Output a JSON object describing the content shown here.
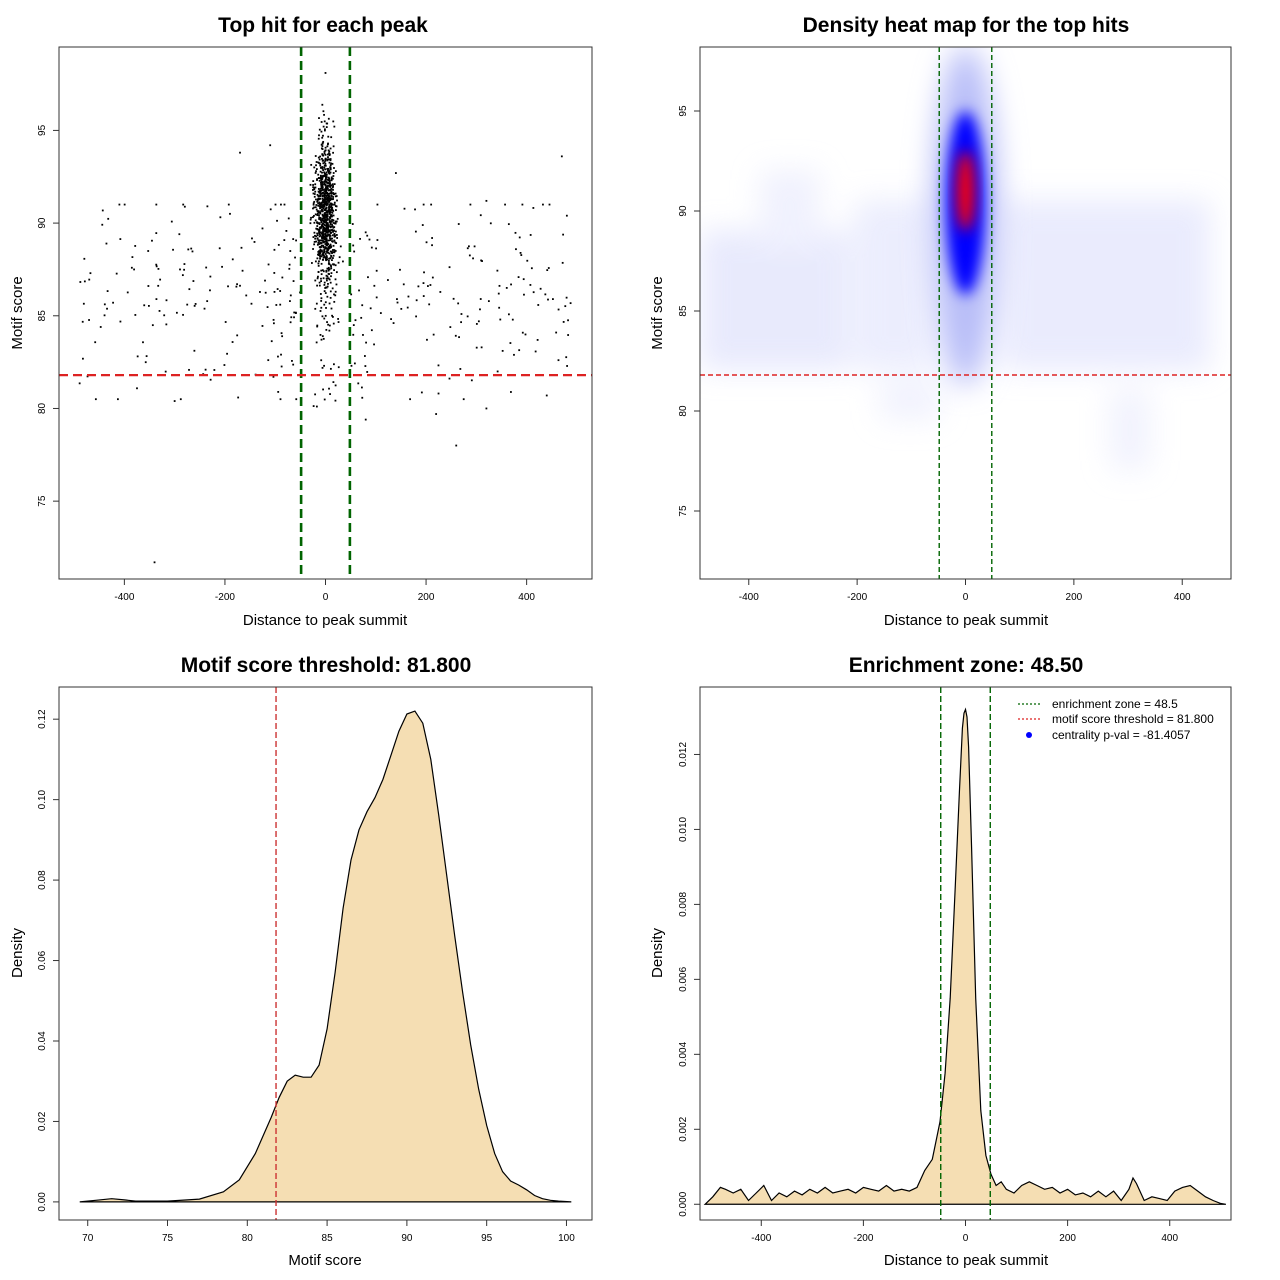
{
  "chart_data": [
    {
      "type": "scatter",
      "title": "Top hit for each peak",
      "xlabel": "Distance to peak summit",
      "ylabel": "Motif score",
      "xlim": [
        -530,
        530
      ],
      "ylim": [
        70.8,
        99.5
      ],
      "xticks": [
        "-400",
        "-200",
        "0",
        "200",
        "400"
      ],
      "yticks": [
        "75",
        "80",
        "85",
        "90",
        "95"
      ],
      "vlines": [
        -48.5,
        48.5
      ],
      "hline": 81.8,
      "vline_color": "#006400",
      "hline_color": "#dd2222",
      "point_color": "#000000",
      "highlight_points": [
        {
          "x": -340,
          "y": 71.7
        },
        {
          "x": 260,
          "y": 78
        },
        {
          "x": -300,
          "y": 80.4
        },
        {
          "x": 220,
          "y": 79.7
        },
        {
          "x": 320,
          "y": 80
        },
        {
          "x": 440,
          "y": 80.7
        },
        {
          "x": 470,
          "y": 93.6
        },
        {
          "x": 480,
          "y": 90.4
        },
        {
          "x": -170,
          "y": 93.8
        },
        {
          "x": 140,
          "y": 92.7
        },
        {
          "x": 320,
          "y": 91.2
        },
        {
          "x": -110,
          "y": 94.2
        },
        {
          "x": 80,
          "y": 79.4
        },
        {
          "x": 0,
          "y": 98.1
        }
      ]
    },
    {
      "type": "heatmap",
      "title": "Density heat map for the top hits",
      "xlabel": "Distance to peak summit",
      "ylabel": "Motif score",
      "xlim": [
        -490,
        490
      ],
      "ylim": [
        71.6,
        98.2
      ],
      "xticks": [
        "-400",
        "-200",
        "0",
        "200",
        "400"
      ],
      "yticks": [
        "75",
        "80",
        "85",
        "90",
        "95"
      ],
      "hotspot": {
        "x": 0,
        "y": 91
      },
      "vlines": [
        -48.5,
        48.5
      ],
      "hline": 81.8,
      "vline_color": "#006400",
      "hline_color": "#dd2222",
      "low_color": "#ffffff",
      "mid_color": "#0000ff",
      "high_color": "#ff0000"
    },
    {
      "type": "area",
      "title": "Motif score threshold: 81.800",
      "xlabel": "Motif score",
      "ylabel": "Density",
      "xlim": [
        68.2,
        101.6
      ],
      "ylim": [
        -0.0045,
        0.128
      ],
      "xticks": [
        "70",
        "75",
        "80",
        "85",
        "90",
        "95",
        "100"
      ],
      "yticks": [
        "0.00",
        "0.02",
        "0.04",
        "0.06",
        "0.08",
        "0.10",
        "0.12"
      ],
      "x": [
        69.5,
        70.5,
        71.5,
        72.3,
        73,
        75,
        77,
        78.5,
        79.5,
        80.5,
        81.5,
        82,
        82.5,
        83,
        83.5,
        84,
        84.5,
        85,
        85.5,
        86,
        86.5,
        87,
        87.5,
        88,
        88.5,
        89,
        89.5,
        90,
        90.5,
        91,
        91.5,
        92,
        92.5,
        93,
        93.5,
        94,
        94.5,
        95,
        95.5,
        96,
        96.5,
        97,
        97.5,
        98,
        98.5,
        99,
        99.5,
        100.3
      ],
      "y": [
        0,
        0.0004,
        0.0008,
        0.0005,
        0.0002,
        0.0002,
        0.0007,
        0.0025,
        0.0055,
        0.012,
        0.021,
        0.026,
        0.03,
        0.0315,
        0.031,
        0.031,
        0.034,
        0.043,
        0.057,
        0.073,
        0.085,
        0.0925,
        0.097,
        0.1005,
        0.105,
        0.111,
        0.117,
        0.1213,
        0.122,
        0.119,
        0.11,
        0.096,
        0.081,
        0.066,
        0.052,
        0.039,
        0.028,
        0.019,
        0.012,
        0.0075,
        0.0052,
        0.0042,
        0.003,
        0.0016,
        0.0008,
        0.0004,
        0.0002,
        0
      ],
      "vline": 81.8,
      "vline_color": "#cc3333",
      "fill_color": "#f5deb3"
    },
    {
      "type": "area",
      "title": "Enrichment zone: 48.50",
      "xlabel": "Distance to peak summit",
      "ylabel": "Density",
      "xlim": [
        -520,
        520
      ],
      "ylim": [
        -0.00042,
        0.0138
      ],
      "xticks": [
        "-400",
        "-200",
        "0",
        "200",
        "400"
      ],
      "yticks": [
        "0.000",
        "0.002",
        "0.004",
        "0.006",
        "0.008",
        "0.010",
        "0.012"
      ],
      "x": [
        -510,
        -495,
        -480,
        -470,
        -455,
        -440,
        -425,
        -410,
        -395,
        -380,
        -365,
        -350,
        -335,
        -320,
        -305,
        -290,
        -275,
        -260,
        -245,
        -230,
        -215,
        -200,
        -185,
        -170,
        -155,
        -140,
        -125,
        -110,
        -95,
        -80,
        -65,
        -50,
        -40,
        -30,
        -20,
        -12,
        -6,
        -3,
        0,
        3,
        6,
        12,
        20,
        30,
        40,
        50,
        60,
        70,
        80,
        95,
        110,
        125,
        140,
        155,
        170,
        185,
        200,
        215,
        230,
        245,
        260,
        275,
        290,
        305,
        320,
        328,
        335,
        350,
        365,
        380,
        395,
        410,
        425,
        440,
        455,
        470,
        485,
        500,
        510
      ],
      "y": [
        0,
        0.0002,
        0.00045,
        0.0004,
        0.0003,
        0.0004,
        0.0001,
        0.0003,
        0.0005,
        0.0001,
        0.0003,
        0.0002,
        0.00035,
        0.00025,
        0.0004,
        0.0003,
        0.00045,
        0.0003,
        0.00035,
        0.0004,
        0.0003,
        0.00045,
        0.0004,
        0.00035,
        0.0005,
        0.00035,
        0.0004,
        0.00035,
        0.00045,
        0.0009,
        0.0012,
        0.0022,
        0.0035,
        0.0055,
        0.0085,
        0.011,
        0.0127,
        0.0131,
        0.0132,
        0.013,
        0.0122,
        0.0095,
        0.0055,
        0.0025,
        0.0013,
        0.0008,
        0.0005,
        0.0006,
        0.0004,
        0.0003,
        0.0005,
        0.0006,
        0.0005,
        0.0004,
        0.00045,
        0.0003,
        0.0004,
        0.00025,
        0.0003,
        0.0002,
        0.00035,
        0.0002,
        0.00035,
        0.0001,
        0.0004,
        0.0007,
        0.00055,
        0.0001,
        0.0002,
        0.00015,
        0.0001,
        0.00035,
        0.00045,
        0.0005,
        0.00035,
        0.0002,
        0.0001,
        2e-05,
        0
      ],
      "vlines": [
        -48.5,
        48.5
      ],
      "vline_color": "#006400",
      "fill_color": "#f5deb3",
      "legend_position": "top-right",
      "legend": [
        {
          "label": "enrichment zone = 48.5",
          "color": "#006400",
          "kind": "line"
        },
        {
          "label": "motif score threshold = 81.800",
          "color": "#dd2222",
          "kind": "line"
        },
        {
          "label": "centrality p-val = -81.4057",
          "color": "#0000ff",
          "kind": "point"
        }
      ]
    }
  ]
}
